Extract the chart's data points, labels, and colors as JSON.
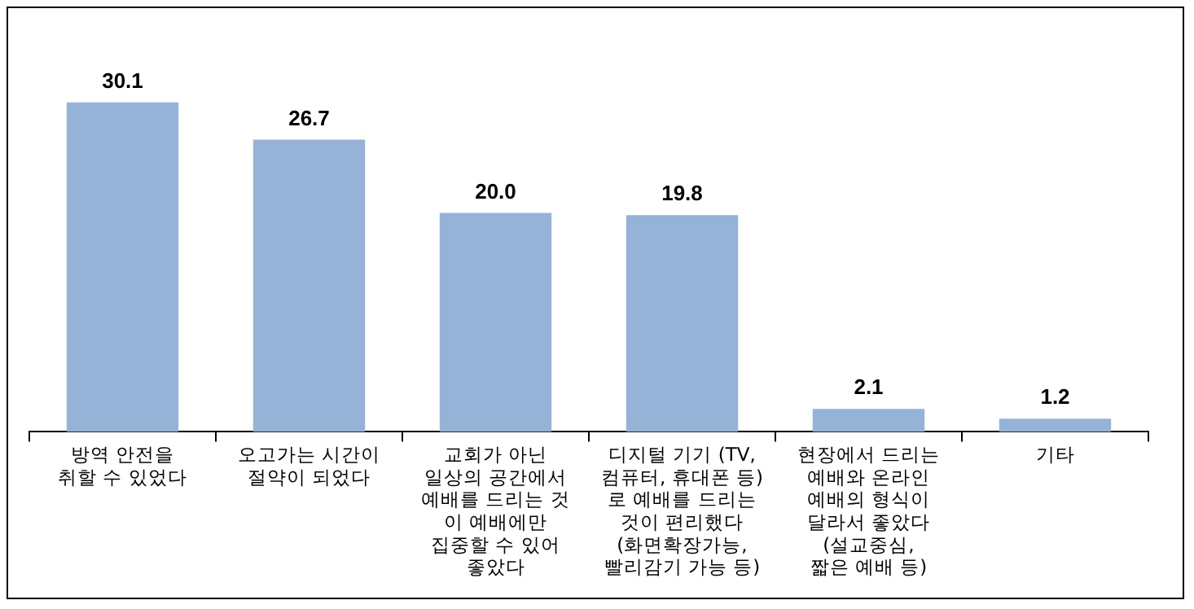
{
  "chart_data": {
    "type": "bar",
    "categories": [
      "방역 안전을\n취할 수 있었다",
      "오고가는 시간이\n절약이 되었다",
      "교회가 아닌\n일상의 공간에서\n예배를 드리는 것\n이 예배에만\n집중할 수 있어\n좋았다",
      "디지털 기기 (TV,\n컴퓨터, 휴대폰 등)\n로 예배를 드리는\n것이 편리했다\n(화면확장가능,\n빨리감기 가능 등)",
      "현장에서 드리는\n예배와 온라인\n예배의 형식이\n달라서 좋았다\n(설교중심,\n짧은 예배 등)",
      "기타"
    ],
    "values": [
      30.1,
      26.7,
      20.0,
      19.8,
      2.1,
      1.2
    ],
    "color": "#95b3d7",
    "value_labels": [
      "30.1",
      "26.7",
      "20.0",
      "19.8",
      "2.1",
      "1.2"
    ],
    "tick_labels": "x",
    "grid": false,
    "legend": false
  }
}
